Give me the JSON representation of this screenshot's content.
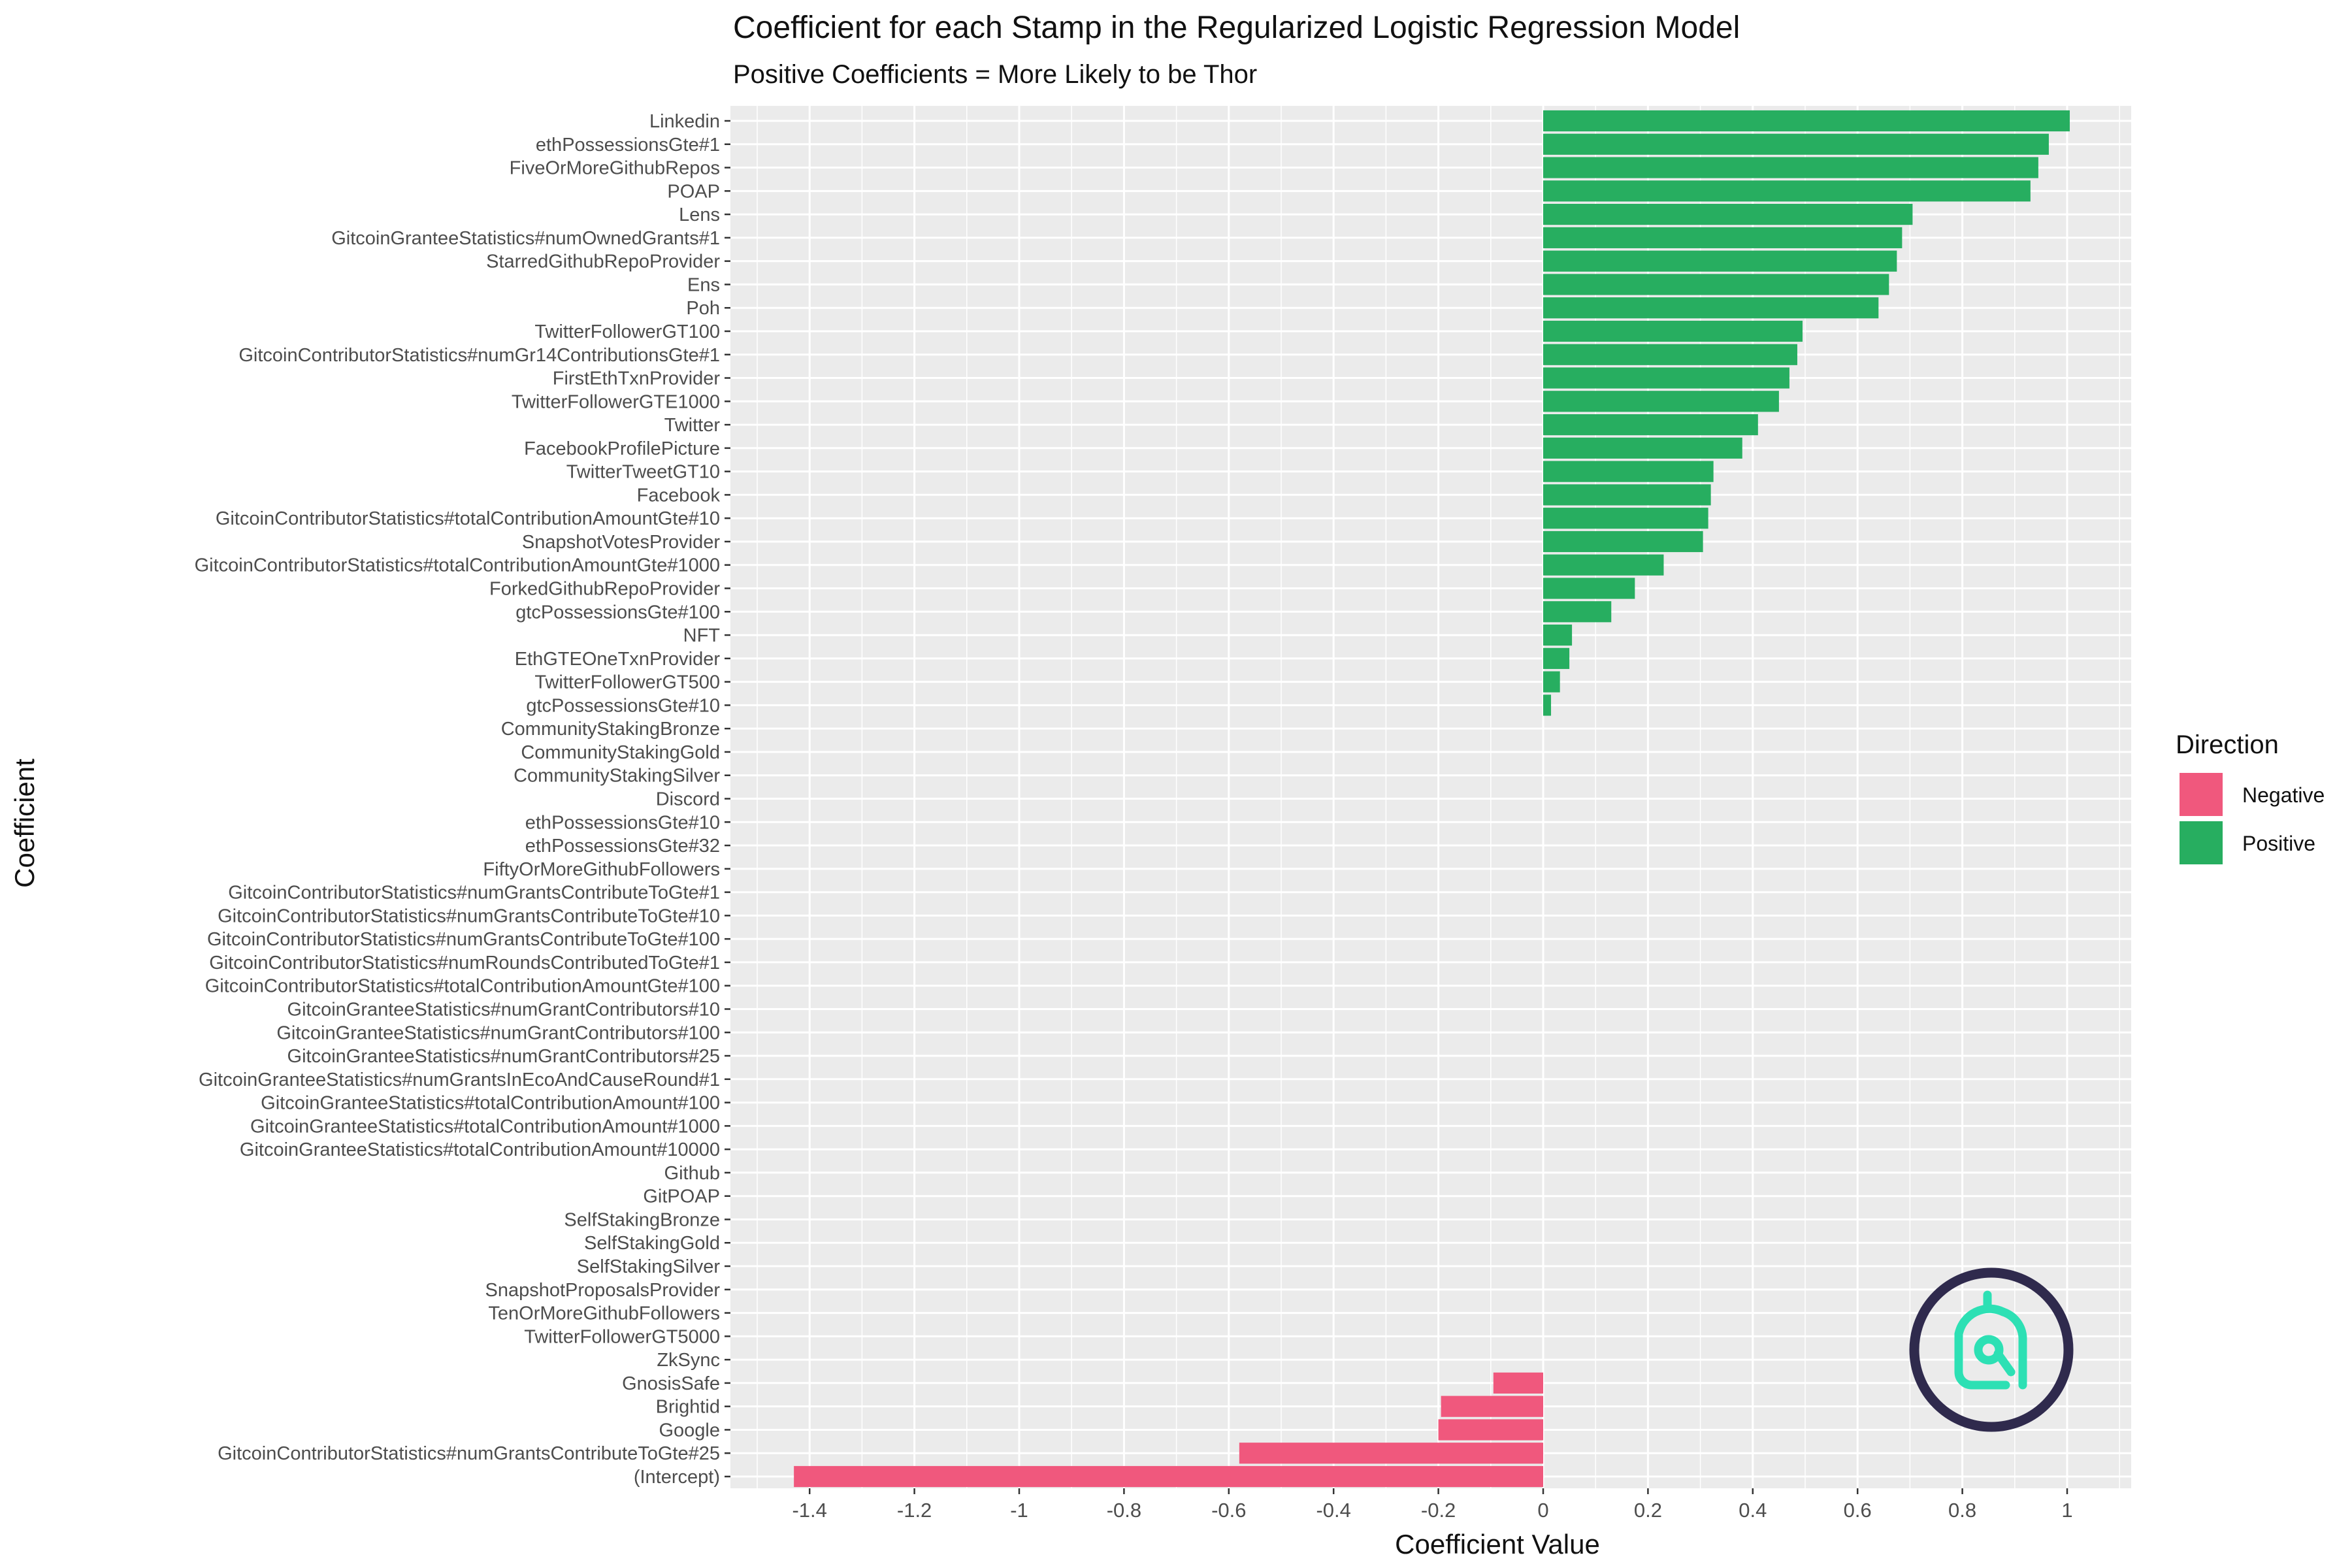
{
  "chart_data": {
    "type": "bar",
    "orientation": "horizontal",
    "title": "Coefficient for each Stamp in the Regularized Logistic Regression Model",
    "subtitle": "Positive Coefficients = More Likely to be Thor",
    "xlabel": "Coefficient Value",
    "ylabel": "Coefficient",
    "xlim": [
      -1.48,
      1.12
    ],
    "x_ticks": [
      -1.4,
      -1.2,
      -1,
      -0.8,
      -0.6,
      -0.4,
      -0.2,
      0,
      0.2,
      0.4,
      0.6,
      0.8,
      1
    ],
    "x_tick_labels": [
      "-1.4",
      "-1.2",
      "-1",
      "-0.8",
      "-0.6",
      "-0.4",
      "-0.2",
      "0",
      "0.2",
      "0.4",
      "0.6",
      "0.8",
      "1"
    ],
    "grid": true,
    "legend": {
      "title": "Direction",
      "placement": "right",
      "entries": [
        {
          "label": "Negative",
          "color": "#f0587d"
        },
        {
          "label": "Positive",
          "color": "#27ae60"
        }
      ]
    },
    "colors": {
      "Negative": "#f0587d",
      "Positive": "#27ae60",
      "panel": "#ebebeb",
      "grid": "#ffffff"
    },
    "categories": [
      {
        "label": "Linkedin",
        "value": 1.005,
        "direction": "Positive"
      },
      {
        "label": "ethPossessionsGte#1",
        "value": 0.965,
        "direction": "Positive"
      },
      {
        "label": "FiveOrMoreGithubRepos",
        "value": 0.945,
        "direction": "Positive"
      },
      {
        "label": "POAP",
        "value": 0.93,
        "direction": "Positive"
      },
      {
        "label": "Lens",
        "value": 0.705,
        "direction": "Positive"
      },
      {
        "label": "GitcoinGranteeStatistics#numOwnedGrants#1",
        "value": 0.685,
        "direction": "Positive"
      },
      {
        "label": "StarredGithubRepoProvider",
        "value": 0.675,
        "direction": "Positive"
      },
      {
        "label": "Ens",
        "value": 0.66,
        "direction": "Positive"
      },
      {
        "label": "Poh",
        "value": 0.64,
        "direction": "Positive"
      },
      {
        "label": "TwitterFollowerGT100",
        "value": 0.495,
        "direction": "Positive"
      },
      {
        "label": "GitcoinContributorStatistics#numGr14ContributionsGte#1",
        "value": 0.485,
        "direction": "Positive"
      },
      {
        "label": "FirstEthTxnProvider",
        "value": 0.47,
        "direction": "Positive"
      },
      {
        "label": "TwitterFollowerGTE1000",
        "value": 0.45,
        "direction": "Positive"
      },
      {
        "label": "Twitter",
        "value": 0.41,
        "direction": "Positive"
      },
      {
        "label": "FacebookProfilePicture",
        "value": 0.38,
        "direction": "Positive"
      },
      {
        "label": "TwitterTweetGT10",
        "value": 0.325,
        "direction": "Positive"
      },
      {
        "label": "Facebook",
        "value": 0.32,
        "direction": "Positive"
      },
      {
        "label": "GitcoinContributorStatistics#totalContributionAmountGte#10",
        "value": 0.315,
        "direction": "Positive"
      },
      {
        "label": "SnapshotVotesProvider",
        "value": 0.305,
        "direction": "Positive"
      },
      {
        "label": "GitcoinContributorStatistics#totalContributionAmountGte#1000",
        "value": 0.23,
        "direction": "Positive"
      },
      {
        "label": "ForkedGithubRepoProvider",
        "value": 0.175,
        "direction": "Positive"
      },
      {
        "label": "gtcPossessionsGte#100",
        "value": 0.13,
        "direction": "Positive"
      },
      {
        "label": "NFT",
        "value": 0.055,
        "direction": "Positive"
      },
      {
        "label": "EthGTEOneTxnProvider",
        "value": 0.05,
        "direction": "Positive"
      },
      {
        "label": "TwitterFollowerGT500",
        "value": 0.032,
        "direction": "Positive"
      },
      {
        "label": "gtcPossessionsGte#10",
        "value": 0.015,
        "direction": "Positive"
      },
      {
        "label": "CommunityStakingBronze",
        "value": 0,
        "direction": "Positive"
      },
      {
        "label": "CommunityStakingGold",
        "value": 0,
        "direction": "Positive"
      },
      {
        "label": "CommunityStakingSilver",
        "value": 0,
        "direction": "Positive"
      },
      {
        "label": "Discord",
        "value": 0,
        "direction": "Positive"
      },
      {
        "label": "ethPossessionsGte#10",
        "value": 0,
        "direction": "Positive"
      },
      {
        "label": "ethPossessionsGte#32",
        "value": 0,
        "direction": "Positive"
      },
      {
        "label": "FiftyOrMoreGithubFollowers",
        "value": 0,
        "direction": "Positive"
      },
      {
        "label": "GitcoinContributorStatistics#numGrantsContributeToGte#1",
        "value": 0,
        "direction": "Positive"
      },
      {
        "label": "GitcoinContributorStatistics#numGrantsContributeToGte#10",
        "value": 0,
        "direction": "Positive"
      },
      {
        "label": "GitcoinContributorStatistics#numGrantsContributeToGte#100",
        "value": 0,
        "direction": "Positive"
      },
      {
        "label": "GitcoinContributorStatistics#numRoundsContributedToGte#1",
        "value": 0,
        "direction": "Positive"
      },
      {
        "label": "GitcoinContributorStatistics#totalContributionAmountGte#100",
        "value": 0,
        "direction": "Positive"
      },
      {
        "label": "GitcoinGranteeStatistics#numGrantContributors#10",
        "value": 0,
        "direction": "Positive"
      },
      {
        "label": "GitcoinGranteeStatistics#numGrantContributors#100",
        "value": 0,
        "direction": "Positive"
      },
      {
        "label": "GitcoinGranteeStatistics#numGrantContributors#25",
        "value": 0,
        "direction": "Positive"
      },
      {
        "label": "GitcoinGranteeStatistics#numGrantsInEcoAndCauseRound#1",
        "value": 0,
        "direction": "Positive"
      },
      {
        "label": "GitcoinGranteeStatistics#totalContributionAmount#100",
        "value": 0,
        "direction": "Positive"
      },
      {
        "label": "GitcoinGranteeStatistics#totalContributionAmount#1000",
        "value": 0,
        "direction": "Positive"
      },
      {
        "label": "GitcoinGranteeStatistics#totalContributionAmount#10000",
        "value": 0,
        "direction": "Positive"
      },
      {
        "label": "Github",
        "value": 0,
        "direction": "Positive"
      },
      {
        "label": "GitPOAP",
        "value": 0,
        "direction": "Positive"
      },
      {
        "label": "SelfStakingBronze",
        "value": 0,
        "direction": "Positive"
      },
      {
        "label": "SelfStakingGold",
        "value": 0,
        "direction": "Positive"
      },
      {
        "label": "SelfStakingSilver",
        "value": 0,
        "direction": "Positive"
      },
      {
        "label": "SnapshotProposalsProvider",
        "value": 0,
        "direction": "Positive"
      },
      {
        "label": "TenOrMoreGithubFollowers",
        "value": 0,
        "direction": "Positive"
      },
      {
        "label": "TwitterFollowerGT5000",
        "value": 0,
        "direction": "Positive"
      },
      {
        "label": "ZkSync",
        "value": 0,
        "direction": "Positive"
      },
      {
        "label": "GnosisSafe",
        "value": -0.095,
        "direction": "Negative"
      },
      {
        "label": "Brightid",
        "value": -0.195,
        "direction": "Negative"
      },
      {
        "label": "Google",
        "value": -0.2,
        "direction": "Negative"
      },
      {
        "label": "GitcoinContributorStatistics#numGrantsContributeToGte#25",
        "value": -0.58,
        "direction": "Negative"
      },
      {
        "label": "(Intercept)",
        "value": -1.43,
        "direction": "Negative"
      }
    ]
  },
  "logo": {
    "icon": "gitcoin-passport-logo-icon",
    "ring_color": "#2f2a4d",
    "mark_color": "#2de0b4"
  }
}
